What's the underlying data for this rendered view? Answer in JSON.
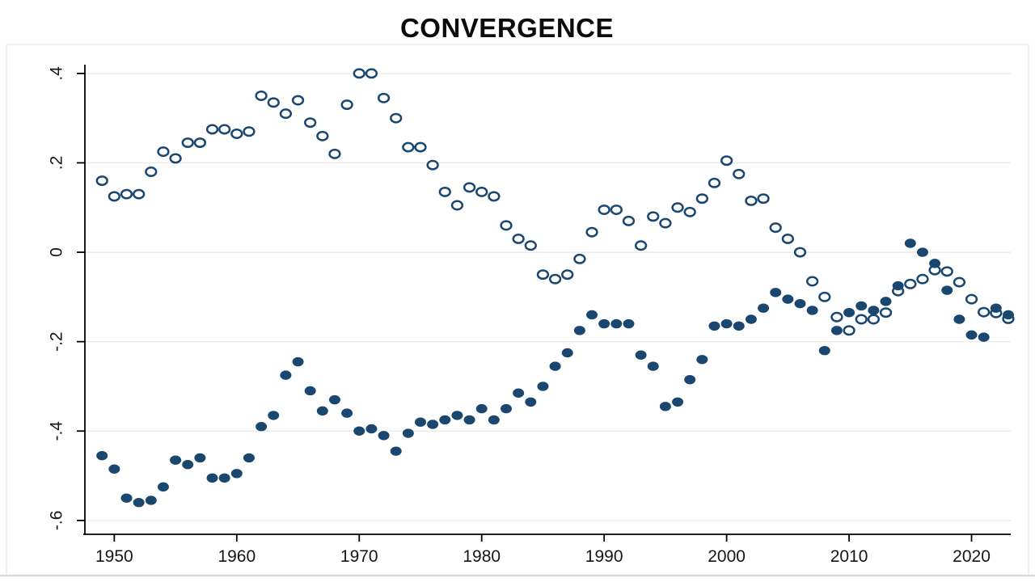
{
  "page": {
    "title": "CONVERGENCE"
  },
  "chart_data": {
    "type": "scatter",
    "title": "CONVERGENCE",
    "xlabel": "",
    "ylabel": "",
    "grid": "horizontal",
    "legend": "none",
    "x_domain": [
      1947.6,
      2023.2
    ],
    "y_domain": [
      -0.631,
      0.416
    ],
    "x_ticks": {
      "values": [
        1950,
        1960,
        1970,
        1980,
        1990,
        2000,
        2010,
        2020
      ],
      "labels": [
        "1950",
        "1960",
        "1970",
        "1980",
        "1990",
        "2000",
        "2010",
        "2020"
      ]
    },
    "y_ticks": {
      "values": [
        0.4,
        0.2,
        0,
        -0.2,
        -0.4,
        -0.6
      ],
      "labels": [
        ".4",
        ".2",
        "0",
        "-.2",
        "-.4",
        "-.6"
      ]
    },
    "x": [
      1949,
      1950,
      1951,
      1952,
      1953,
      1954,
      1955,
      1956,
      1957,
      1958,
      1959,
      1960,
      1961,
      1962,
      1963,
      1964,
      1965,
      1966,
      1967,
      1968,
      1969,
      1970,
      1971,
      1972,
      1973,
      1974,
      1975,
      1976,
      1977,
      1978,
      1979,
      1980,
      1981,
      1982,
      1983,
      1984,
      1985,
      1986,
      1987,
      1988,
      1989,
      1990,
      1991,
      1992,
      1993,
      1994,
      1995,
      1996,
      1997,
      1998,
      1999,
      2000,
      2001,
      2002,
      2003,
      2004,
      2005,
      2006,
      2007,
      2008,
      2009,
      2010,
      2011,
      2012,
      2013,
      2014,
      2015,
      2016,
      2017,
      2018,
      2019,
      2020,
      2021,
      2022,
      2023
    ],
    "series": [
      {
        "name": "hollow-series",
        "marker": "open-circle",
        "color": "#1a476f",
        "values": [
          0.16,
          0.125,
          0.13,
          0.13,
          0.18,
          0.225,
          0.21,
          0.245,
          0.245,
          0.275,
          0.275,
          0.265,
          0.27,
          0.35,
          0.335,
          0.31,
          0.34,
          0.29,
          0.26,
          0.22,
          0.33,
          0.4,
          0.4,
          0.345,
          0.3,
          0.235,
          0.235,
          0.195,
          0.135,
          0.105,
          0.145,
          0.135,
          0.125,
          0.06,
          0.03,
          0.015,
          -0.05,
          -0.06,
          -0.05,
          -0.015,
          0.045,
          0.095,
          0.095,
          0.07,
          0.015,
          0.08,
          0.065,
          0.1,
          0.09,
          0.12,
          0.155,
          0.205,
          0.175,
          0.115,
          0.12,
          0.055,
          0.03,
          0.0,
          -0.065,
          -0.1,
          -0.145,
          -0.175,
          -0.15,
          -0.15,
          -0.135,
          -0.087,
          -0.071,
          -0.06,
          -0.04,
          -0.043,
          -0.067,
          -0.105,
          -0.134,
          -0.136,
          -0.149
        ]
      },
      {
        "name": "filled-series",
        "marker": "filled-circle",
        "color": "#1a476f",
        "values": [
          -0.455,
          -0.485,
          -0.55,
          -0.56,
          -0.555,
          -0.525,
          -0.465,
          -0.475,
          -0.46,
          -0.505,
          -0.505,
          -0.495,
          -0.46,
          -0.39,
          -0.365,
          -0.275,
          -0.245,
          -0.31,
          -0.355,
          -0.33,
          -0.36,
          -0.4,
          -0.395,
          -0.41,
          -0.445,
          -0.405,
          -0.38,
          -0.385,
          -0.375,
          -0.365,
          -0.375,
          -0.35,
          -0.375,
          -0.35,
          -0.315,
          -0.335,
          -0.3,
          -0.255,
          -0.225,
          -0.175,
          -0.14,
          -0.16,
          -0.16,
          -0.16,
          -0.23,
          -0.255,
          -0.345,
          -0.335,
          -0.285,
          -0.24,
          -0.165,
          -0.16,
          -0.165,
          -0.15,
          -0.125,
          -0.09,
          -0.105,
          -0.115,
          -0.13,
          -0.22,
          -0.175,
          -0.135,
          -0.12,
          -0.13,
          -0.11,
          -0.075,
          0.02,
          0.0,
          -0.025,
          -0.085,
          -0.15,
          -0.185,
          -0.19,
          -0.125,
          -0.14
        ]
      }
    ],
    "colors": {
      "marker": "#1a476f",
      "grid": "#e9e9e9",
      "axis": "#000000",
      "frame": "#ececec",
      "title": "#0b0b0b"
    }
  }
}
